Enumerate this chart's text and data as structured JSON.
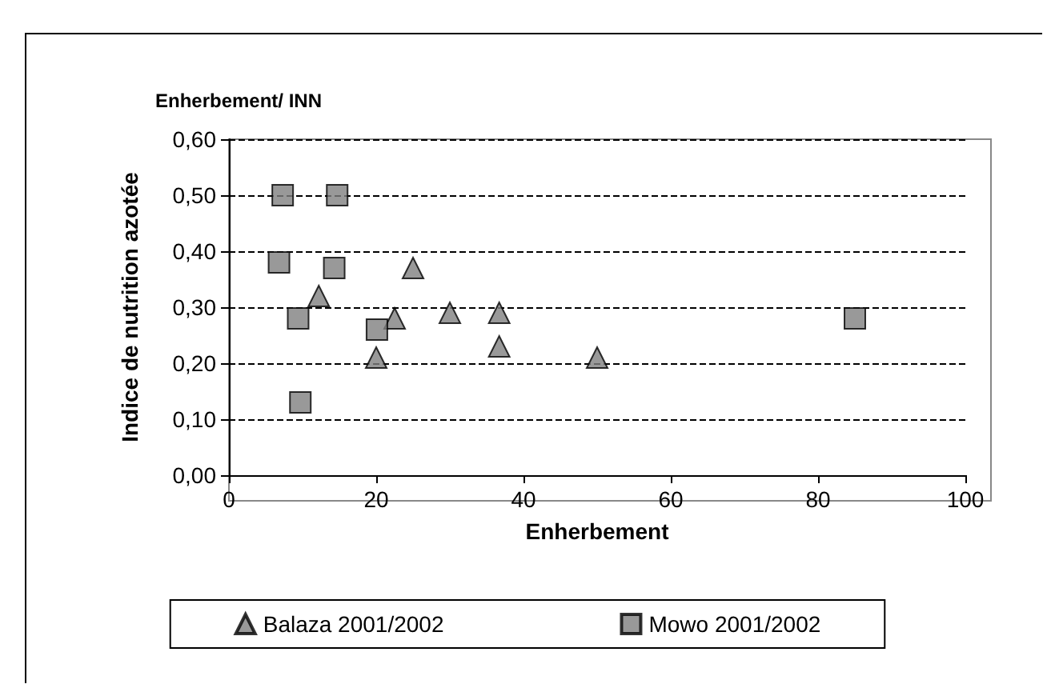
{
  "chart_data": {
    "type": "scatter",
    "title": "Enherbement/ INN",
    "xlabel": "Enherbement",
    "ylabel": "Indice de nutrition azotée",
    "xlim": [
      0,
      100
    ],
    "xticks": [
      0,
      20,
      40,
      60,
      80,
      100
    ],
    "ylim": [
      0,
      0.6
    ],
    "yticks": [
      {
        "value": 0,
        "label": "0,00"
      },
      {
        "value": 0.1,
        "label": "0,10"
      },
      {
        "value": 0.2,
        "label": "0,20"
      },
      {
        "value": 0.3,
        "label": "0,30"
      },
      {
        "value": 0.4,
        "label": "0,40"
      },
      {
        "value": 0.5,
        "label": "0,50"
      },
      {
        "value": 0.6,
        "label": "0,60"
      }
    ],
    "grid": "y",
    "line_style": "dashed",
    "legend": "bottom",
    "series": [
      {
        "name": "Balaza 2001/2002",
        "color": "#808080",
        "marker": "triangle",
        "x": [
          12.2,
          25,
          22.5,
          30,
          36.7,
          36.7,
          20,
          50
        ],
        "values": [
          0.32,
          0.37,
          0.28,
          0.29,
          0.29,
          0.23,
          0.21,
          0.21
        ]
      },
      {
        "name": "Mowo 2001/2002",
        "color": "#808080",
        "marker": "square",
        "x": [
          7.3,
          14.7,
          6.8,
          14.3,
          9.4,
          20.1,
          9.7,
          85
        ],
        "values": [
          0.5,
          0.5,
          0.38,
          0.37,
          0.28,
          0.26,
          0.13,
          0.28
        ]
      }
    ]
  }
}
